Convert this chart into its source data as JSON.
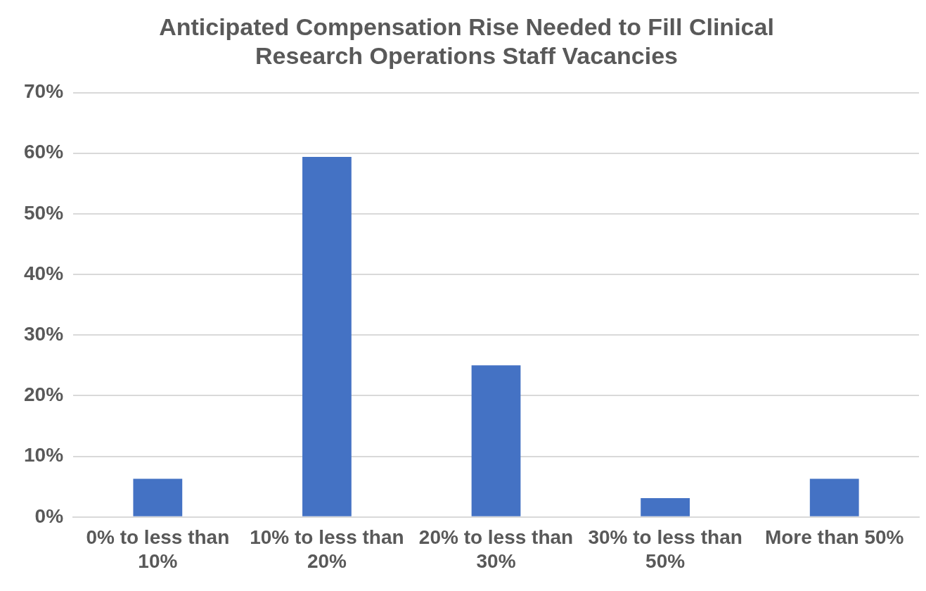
{
  "chart_data": {
    "type": "bar",
    "title": "Anticipated Compensation Rise Needed to Fill Clinical Research Operations Staff Vacancies",
    "categories": [
      "0% to less than 10%",
      "10% to less than 20%",
      "20% to less than 30%",
      "30% to less than 50%",
      "More than 50%"
    ],
    "values": [
      6.3,
      59.4,
      25.0,
      3.1,
      6.3
    ],
    "color": "#4472c4",
    "ylim": [
      0,
      70
    ],
    "yticks": [
      {
        "value": 0,
        "label": "0%"
      },
      {
        "value": 10,
        "label": "10%"
      },
      {
        "value": 20,
        "label": "20%"
      },
      {
        "value": 30,
        "label": "30%"
      },
      {
        "value": 40,
        "label": "40%"
      },
      {
        "value": 50,
        "label": "50%"
      },
      {
        "value": 60,
        "label": "60%"
      },
      {
        "value": 70,
        "label": "70%"
      }
    ],
    "grid": "y"
  }
}
